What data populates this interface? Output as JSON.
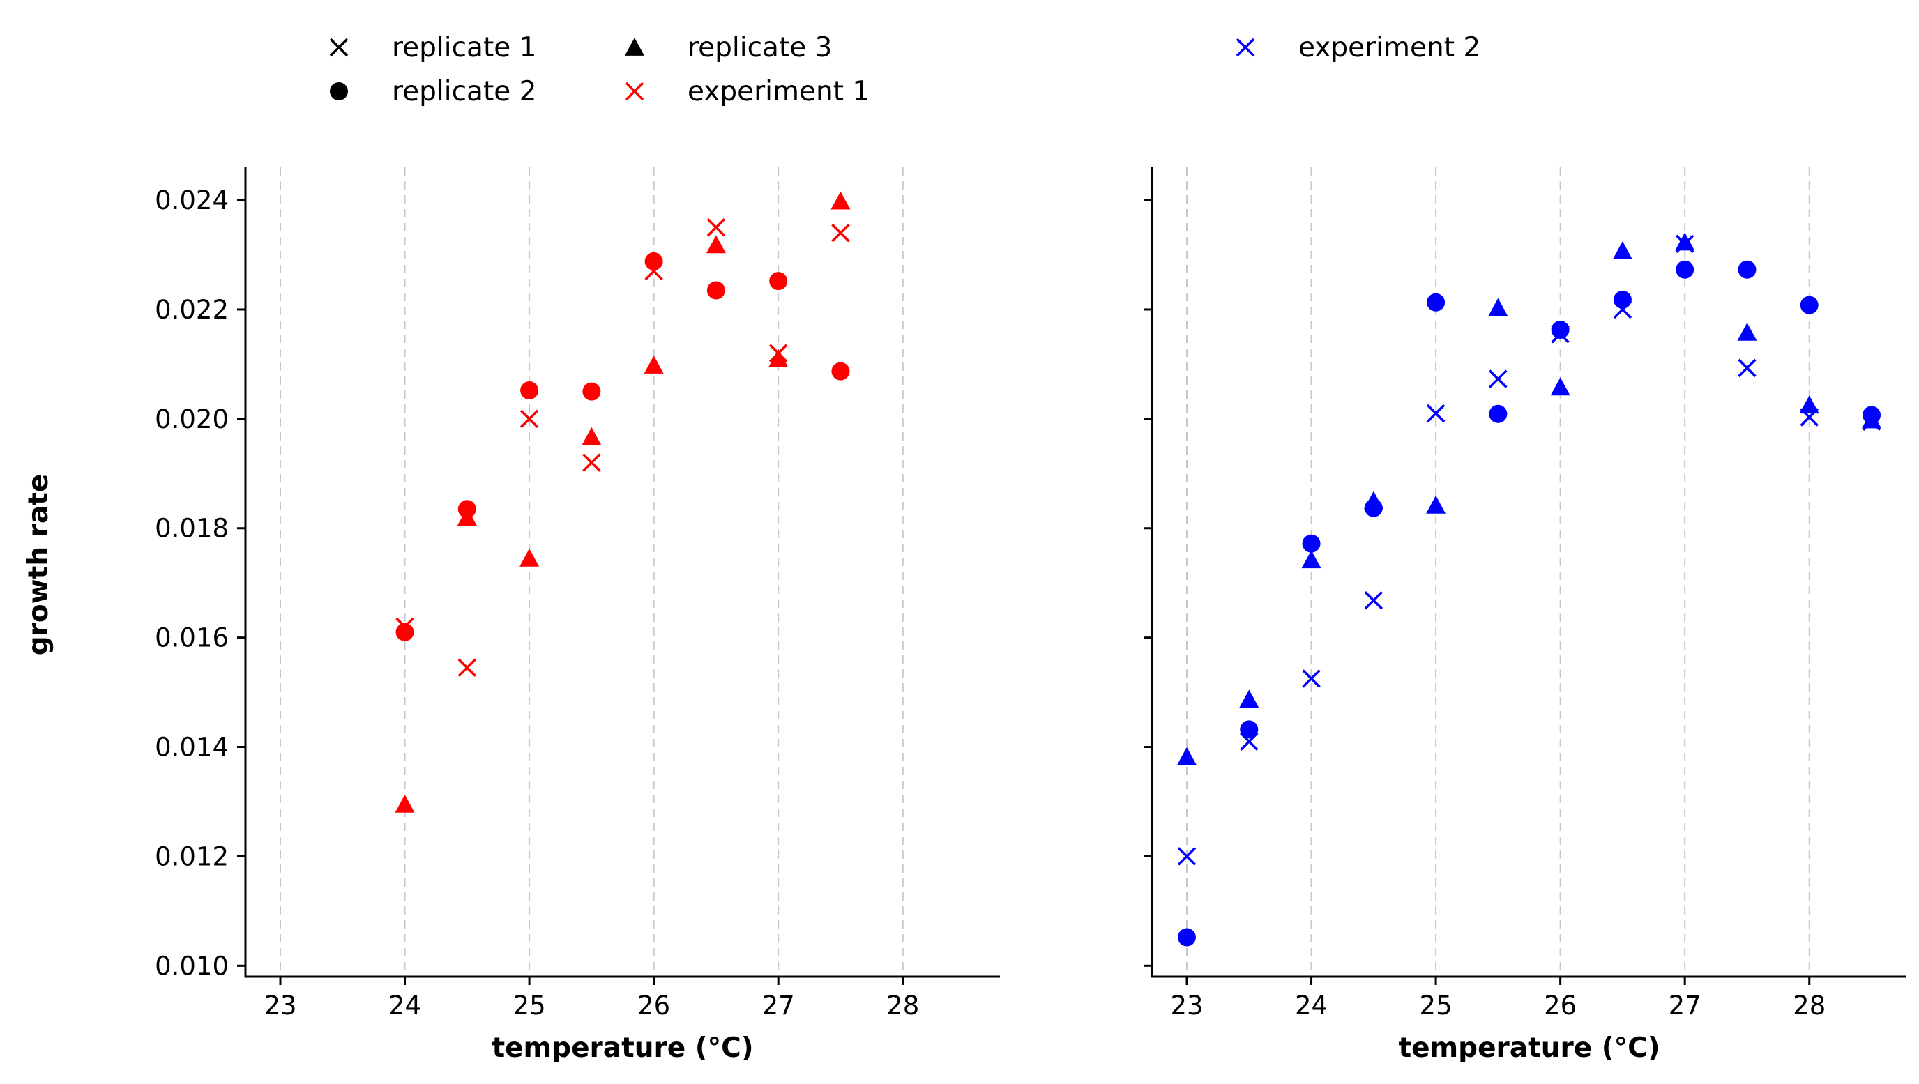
{
  "chart_data": {
    "type": "scatter",
    "shared_ylabel": "growth rate",
    "ylim": [
      0.0098,
      0.0246
    ],
    "yticks": [
      0.01,
      0.012,
      0.014,
      0.016,
      0.018,
      0.02,
      0.022,
      0.024
    ],
    "ytick_labels": [
      "0.010",
      "0.012",
      "0.014",
      "0.016",
      "0.018",
      "0.020",
      "0.022",
      "0.024"
    ],
    "grid": "vertical dashed",
    "marker_legend": [
      {
        "label": "replicate 1",
        "marker": "x"
      },
      {
        "label": "replicate 2",
        "marker": "circle"
      },
      {
        "label": "replicate 3",
        "marker": "triangle"
      }
    ],
    "panels": [
      {
        "xlabel": "temperature (°C)",
        "xlim": [
          22.72,
          28.78
        ],
        "xticks": [
          23,
          24,
          25,
          26,
          27,
          28
        ],
        "xtick_labels": [
          "23",
          "24",
          "25",
          "26",
          "27",
          "28"
        ],
        "color": "#ff0000",
        "legend_label": "experiment 1",
        "series": [
          {
            "replicate": 1,
            "marker": "x",
            "x": [
              24,
              24.5,
              25,
              25.5,
              26,
              26.5,
              27,
              27.5
            ],
            "y": [
              0.0162,
              0.01545,
              0.02,
              0.0192,
              0.0227,
              0.0235,
              0.0212,
              0.0234
            ]
          },
          {
            "replicate": 2,
            "marker": "circle",
            "x": [
              24,
              24.5,
              25,
              25.5,
              26,
              26.5,
              27,
              27.5
            ],
            "y": [
              0.0161,
              0.01835,
              0.02052,
              0.0205,
              0.02288,
              0.02235,
              0.02252,
              0.02087
            ]
          },
          {
            "replicate": 3,
            "marker": "triangle",
            "x": [
              24,
              24.5,
              25,
              25.5,
              26,
              26.5,
              27,
              27.5
            ],
            "y": [
              0.01295,
              0.0182,
              0.01745,
              0.01967,
              0.02098,
              0.02318,
              0.0211,
              0.02398
            ]
          }
        ]
      },
      {
        "xlabel": "temperature (°C)",
        "xlim": [
          22.72,
          28.78
        ],
        "xticks": [
          23,
          24,
          25,
          26,
          27,
          28
        ],
        "xtick_labels": [
          "23",
          "24",
          "25",
          "26",
          "27",
          "28"
        ],
        "color": "#0000ff",
        "legend_label": "experiment 2",
        "series": [
          {
            "replicate": 1,
            "marker": "x",
            "x": [
              23,
              23.5,
              24,
              24.5,
              25,
              25.5,
              26,
              26.5,
              27,
              27.5,
              28,
              28.5
            ],
            "y": [
              0.012,
              0.0141,
              0.01525,
              0.01668,
              0.0201,
              0.02073,
              0.02155,
              0.022,
              0.0232,
              0.02093,
              0.02003,
              0.01995
            ]
          },
          {
            "replicate": 2,
            "marker": "circle",
            "x": [
              23,
              23.5,
              24,
              24.5,
              25,
              25.5,
              26,
              26.5,
              27,
              27.5,
              28,
              28.5
            ],
            "y": [
              0.01052,
              0.01432,
              0.01772,
              0.01837,
              0.02213,
              0.02009,
              0.02163,
              0.02218,
              0.02273,
              0.02273,
              0.02208,
              0.02007
            ]
          },
          {
            "replicate": 3,
            "marker": "triangle",
            "x": [
              23,
              23.5,
              24,
              24.5,
              25,
              25.5,
              26,
              26.5,
              27,
              27.5,
              28,
              28.5
            ],
            "y": [
              0.01382,
              0.01487,
              0.01742,
              0.0185,
              0.01842,
              0.02203,
              0.02058,
              0.02307,
              0.02323,
              0.02158,
              0.02025,
              0.01998
            ]
          }
        ]
      }
    ]
  }
}
